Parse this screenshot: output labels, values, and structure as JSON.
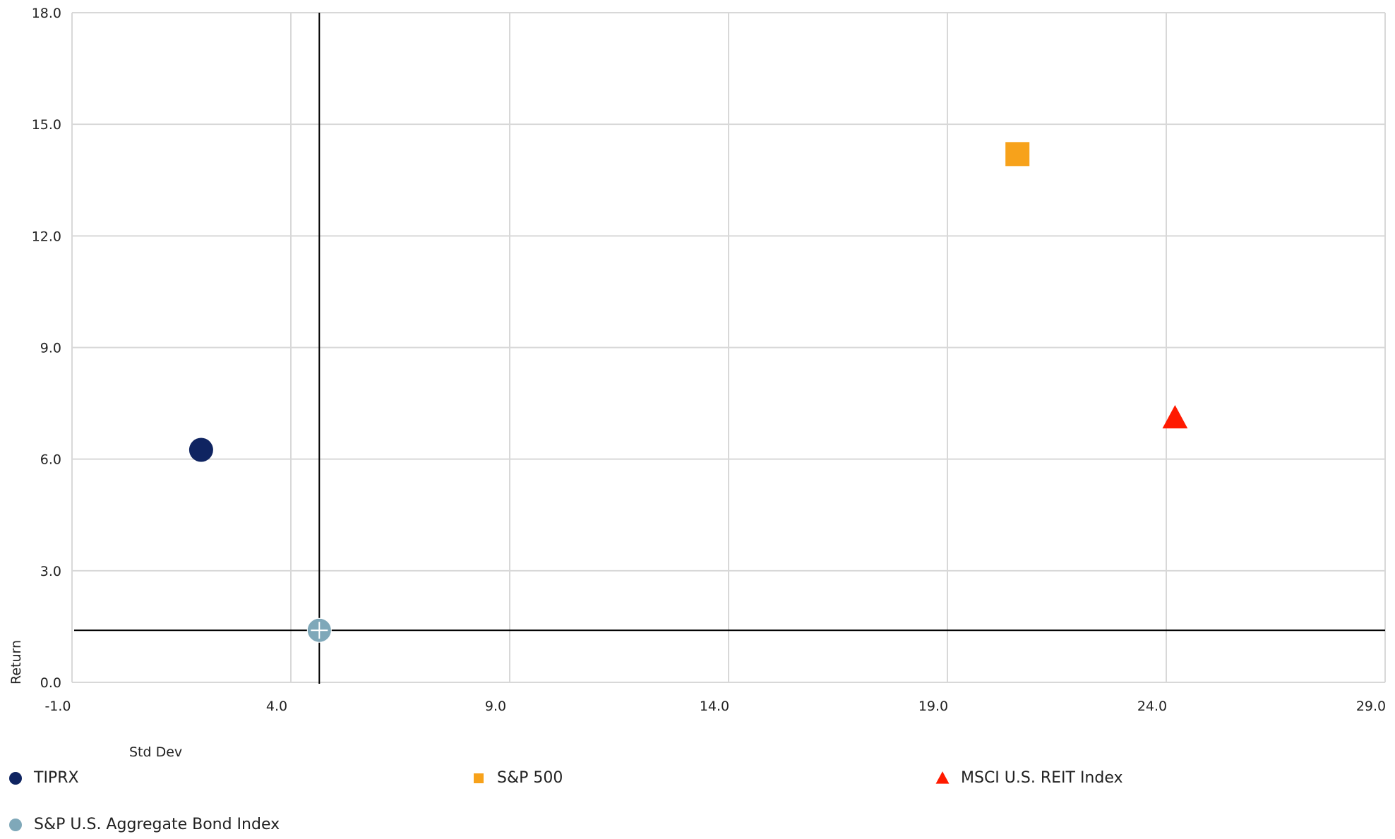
{
  "chart_data": {
    "type": "scatter",
    "xlabel": "Std Dev",
    "ylabel": "Return",
    "xlim": [
      -1.0,
      29.0
    ],
    "ylim": [
      0.0,
      18.0
    ],
    "x_ticks": [
      "-1.0",
      "4.0",
      "9.0",
      "14.0",
      "19.0",
      "24.0",
      "29.0"
    ],
    "y_ticks": [
      "0.0",
      "3.0",
      "6.0",
      "9.0",
      "12.0",
      "15.0",
      "18.0"
    ],
    "x_tick_values": [
      -1,
      4,
      9,
      14,
      19,
      24,
      29
    ],
    "y_tick_values": [
      0,
      3,
      6,
      9,
      12,
      15,
      18
    ],
    "grid": true,
    "legend_position": "bottom",
    "crosshair": {
      "x": 4.65,
      "y": 1.4
    },
    "series": [
      {
        "name": "TIPRX",
        "x": 1.95,
        "y": 6.25,
        "marker": "circle",
        "color": "#0f2461"
      },
      {
        "name": "S&P 500",
        "x": 20.6,
        "y": 14.2,
        "marker": "square",
        "color": "#f7a21b"
      },
      {
        "name": "MSCI U.S. REIT Index",
        "x": 24.2,
        "y": 7.1,
        "marker": "triangle",
        "color": "#ff1a00"
      },
      {
        "name": "S&P U.S. Aggregate Bond Index",
        "x": 4.65,
        "y": 1.4,
        "marker": "circle",
        "color": "#7fa8b9"
      }
    ]
  }
}
